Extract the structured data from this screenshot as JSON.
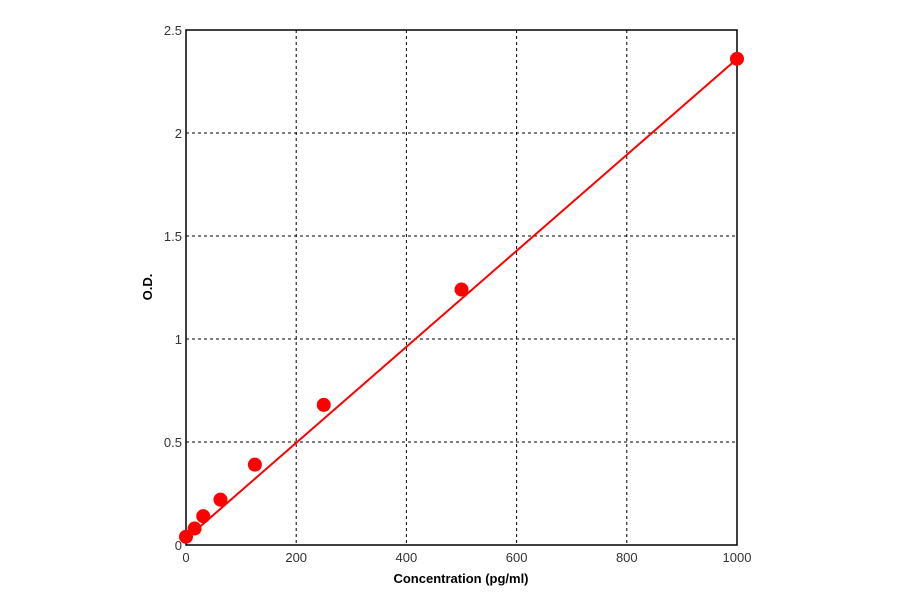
{
  "chart_data": {
    "type": "scatter",
    "title": "",
    "xlabel": "Concentration (pg/ml)",
    "ylabel": "O.D.",
    "xlim": [
      0,
      1000
    ],
    "ylim": [
      0,
      2.5
    ],
    "xticks": [
      0,
      200,
      400,
      600,
      800,
      1000
    ],
    "yticks": [
      0,
      0.5,
      1,
      1.5,
      2,
      2.5
    ],
    "xtick_labels": [
      "0",
      "200",
      "400",
      "600",
      "800",
      "1000"
    ],
    "ytick_labels": [
      "0",
      "0.5",
      "1",
      "1.5",
      "2",
      "2.5"
    ],
    "grid": true,
    "series": [
      {
        "x": [
          0,
          15.6,
          31.25,
          62.5,
          125,
          250,
          500,
          1000
        ],
        "y": [
          0.04,
          0.08,
          0.14,
          0.22,
          0.39,
          0.68,
          1.24,
          2.36
        ]
      }
    ],
    "fit_line": {
      "x": [
        0,
        1000
      ],
      "y": [
        0.03,
        2.36
      ]
    },
    "colors": {
      "series": "#ff0000",
      "grid": "#000000",
      "axis": "#000000"
    }
  }
}
